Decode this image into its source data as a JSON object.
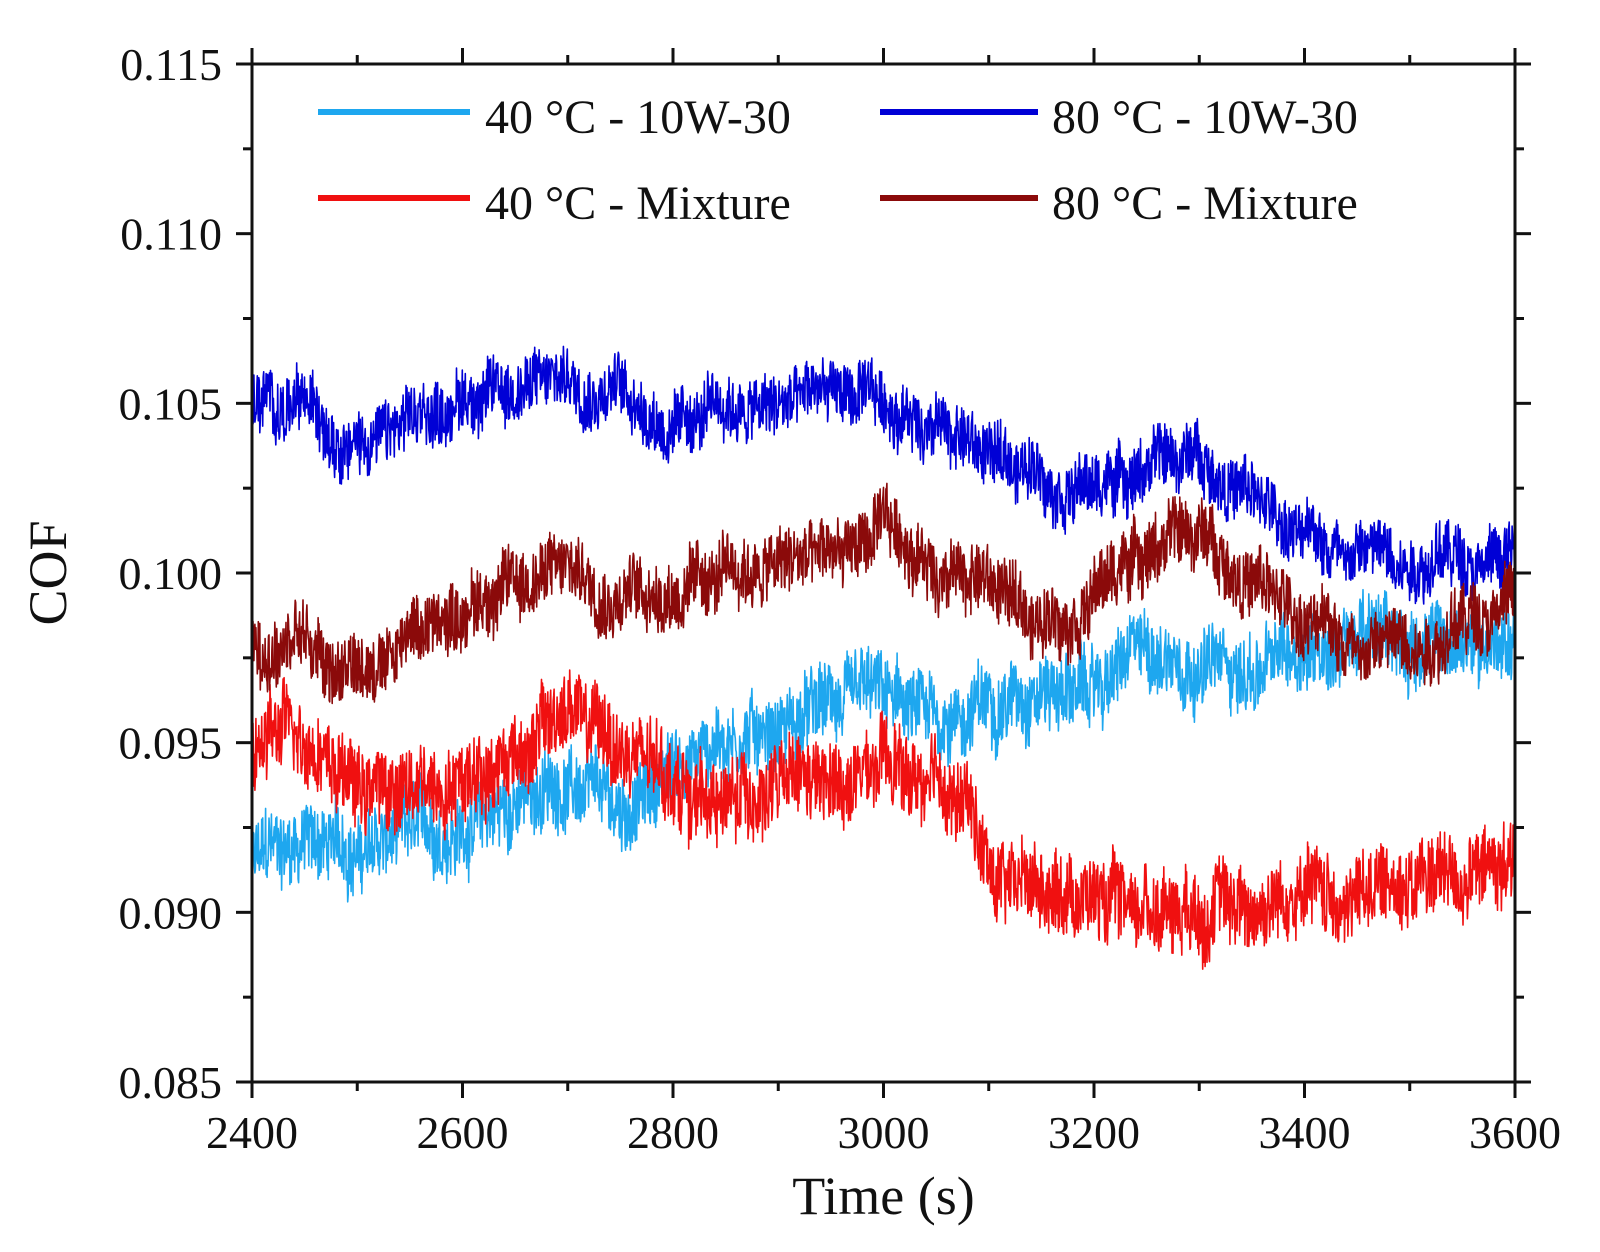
{
  "chart_data": {
    "type": "line",
    "title": "",
    "xlabel": "Time (s)",
    "ylabel": "COF",
    "xlim": [
      2400,
      3600
    ],
    "ylim": [
      0.085,
      0.115
    ],
    "x_ticks": [
      "2400",
      "2600",
      "2800",
      "3000",
      "3200",
      "3400",
      "3600"
    ],
    "y_ticks": [
      "0.085",
      "0.090",
      "0.095",
      "0.100",
      "0.105",
      "0.110",
      "0.115"
    ],
    "grid": false,
    "legend_position": "top",
    "series": [
      {
        "name": "40 °C - 10W-30",
        "color": "#1EA7EF",
        "noise": 0.0013,
        "x": [
          2400,
          2450,
          2500,
          2550,
          2600,
          2650,
          2700,
          2750,
          2800,
          2850,
          2900,
          2950,
          3000,
          3050,
          3100,
          3150,
          3200,
          3250,
          3300,
          3350,
          3400,
          3450,
          3500,
          3550,
          3600
        ],
        "y": [
          0.0915,
          0.0922,
          0.0918,
          0.0922,
          0.0925,
          0.0932,
          0.0938,
          0.0928,
          0.0942,
          0.0952,
          0.0955,
          0.096,
          0.0962,
          0.0955,
          0.0962,
          0.0968,
          0.0965,
          0.0978,
          0.0975,
          0.097,
          0.0978,
          0.0982,
          0.098,
          0.0978,
          0.0982
        ]
      },
      {
        "name": "80 °C - 10W-30",
        "color": "#0000D6",
        "noise": 0.0011,
        "x": [
          2400,
          2450,
          2500,
          2550,
          2600,
          2650,
          2700,
          2750,
          2800,
          2850,
          2900,
          2950,
          3000,
          3050,
          3100,
          3150,
          3200,
          3250,
          3300,
          3350,
          3400,
          3450,
          3500,
          3550,
          3600
        ],
        "y": [
          0.105,
          0.1048,
          0.104,
          0.1042,
          0.1052,
          0.1055,
          0.1058,
          0.1055,
          0.1042,
          0.1048,
          0.1048,
          0.1055,
          0.1048,
          0.1045,
          0.1035,
          0.103,
          0.1025,
          0.1032,
          0.1035,
          0.1022,
          0.101,
          0.1008,
          0.1005,
          0.1005,
          0.1005
        ]
      },
      {
        "name": "40 °C - Mixture",
        "color": "#F01010",
        "noise": 0.0014,
        "x": [
          2400,
          2450,
          2500,
          2550,
          2600,
          2650,
          2700,
          2750,
          2800,
          2850,
          2900,
          2950,
          3000,
          3050,
          3080,
          3100,
          3150,
          3200,
          3250,
          3300,
          3350,
          3400,
          3450,
          3500,
          3550,
          3600
        ],
        "y": [
          0.0948,
          0.0955,
          0.0938,
          0.0935,
          0.0942,
          0.0948,
          0.096,
          0.0948,
          0.0938,
          0.0932,
          0.0938,
          0.0935,
          0.0942,
          0.0935,
          0.0932,
          0.0912,
          0.091,
          0.0905,
          0.0902,
          0.0905,
          0.0902,
          0.0905,
          0.0905,
          0.091,
          0.0912,
          0.0915
        ]
      },
      {
        "name": "80 °C - Mixture",
        "color": "#8B0A0A",
        "noise": 0.0012,
        "x": [
          2400,
          2450,
          2500,
          2550,
          2600,
          2650,
          2700,
          2750,
          2800,
          2850,
          2900,
          2950,
          3000,
          3050,
          3100,
          3150,
          3200,
          3250,
          3300,
          3350,
          3400,
          3450,
          3500,
          3550,
          3600
        ],
        "y": [
          0.0975,
          0.098,
          0.097,
          0.0982,
          0.099,
          0.0998,
          0.1002,
          0.0995,
          0.0995,
          0.0998,
          0.1002,
          0.1005,
          0.1012,
          0.1002,
          0.0998,
          0.0985,
          0.0995,
          0.1008,
          0.1012,
          0.0998,
          0.0985,
          0.098,
          0.098,
          0.0985,
          0.0995
        ]
      }
    ]
  }
}
